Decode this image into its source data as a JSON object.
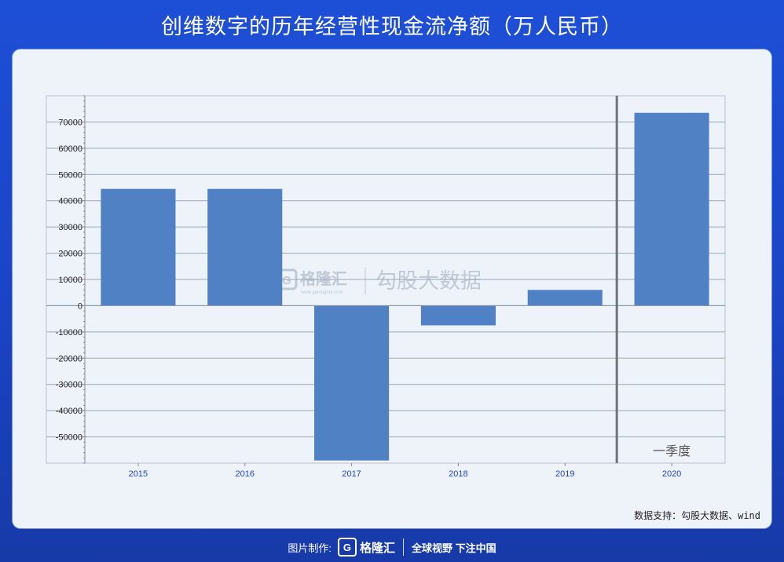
{
  "page": {
    "title": "创维数字的历年经营性现金流净额（万人民币）",
    "source": "数据支持：勾股大数据、wind",
    "footer": {
      "made_by": "图片制作:",
      "brand": "格隆汇",
      "slogan": "全球视野 下注中国"
    },
    "watermark": {
      "brand": "格隆汇",
      "sub": "www.gelonghui.com",
      "text": "勾股大数据"
    }
  },
  "colors": {
    "bar": "#4f81c4",
    "background": "#1d4fd6",
    "panel": "#eef3fa",
    "x_tick": "#1f3fd0"
  },
  "chart_data": {
    "type": "bar",
    "title": "创维数字的历年经营性现金流净额（万人民币）",
    "categories": [
      "2015",
      "2016",
      "2017",
      "2018",
      "2019",
      "2020"
    ],
    "series": [
      {
        "values": [
          44500,
          44500,
          -59000,
          -7500,
          6000,
          73500
        ]
      }
    ],
    "ylim": [
      -60000,
      80000
    ],
    "yticks": [
      -50000,
      -40000,
      -30000,
      -20000,
      -10000,
      0,
      10000,
      20000,
      30000,
      40000,
      50000,
      60000,
      70000
    ],
    "grid": true,
    "annotation": "一季度",
    "xlabel": "",
    "ylabel": ""
  }
}
